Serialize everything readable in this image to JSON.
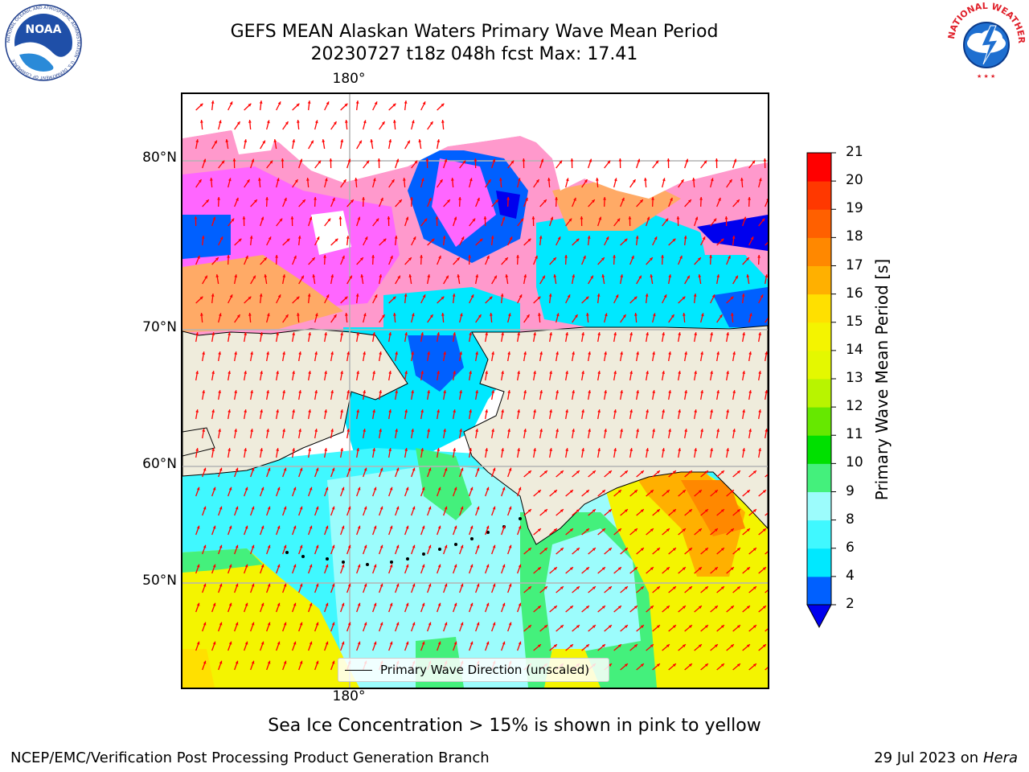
{
  "title": {
    "line1": "GEFS MEAN Alaskan Waters Primary Wave Mean Period",
    "line2": "20230727 t18z 048h fcst   Max: 17.41"
  },
  "map": {
    "lat_labels": [
      "80°N",
      "70°N",
      "60°N",
      "50°N"
    ],
    "lon_label_top": "180°",
    "lon_label_bottom": "180°",
    "legend": "Primary Wave Direction (unscaled)",
    "arrow_color": "#ff0000",
    "land_color": "#efecdc",
    "ice_colors": [
      "#ff66ff",
      "#ff99cc",
      "#ffaa66"
    ]
  },
  "colorbar": {
    "label": "Primary Wave Mean Period [s]",
    "ticks": [
      "2",
      "4",
      "6",
      "8",
      "9",
      "10",
      "11",
      "12",
      "13",
      "14",
      "15",
      "16",
      "17",
      "18",
      "19",
      "20",
      "21"
    ],
    "colors": [
      "#0060ff",
      "#00e8ff",
      "#40f8ff",
      "#9cfcfc",
      "#44f07c",
      "#00e000",
      "#66e800",
      "#b8f400",
      "#e4f800",
      "#f4f400",
      "#ffe000",
      "#ffb000",
      "#ff8800",
      "#ff6000",
      "#ff3800",
      "#ff0000"
    ],
    "extend_color": "#0000ee"
  },
  "subtitle": "Sea Ice Concentration > 15% is shown in pink to yellow",
  "footer": {
    "left": "NCEP/EMC/Verification Post Processing Product Generation Branch",
    "right_date": "29 Jul 2023 on ",
    "right_machine": "Hera"
  },
  "logos": {
    "noaa_text": "NOAA",
    "noaa_ring": "NATIONAL OCEANIC AND ATMOSPHERIC ADMINISTRATION · U.S. DEPARTMENT OF COMMERCE",
    "nws_ring": "NATIONAL WEATHER SERVICE"
  }
}
